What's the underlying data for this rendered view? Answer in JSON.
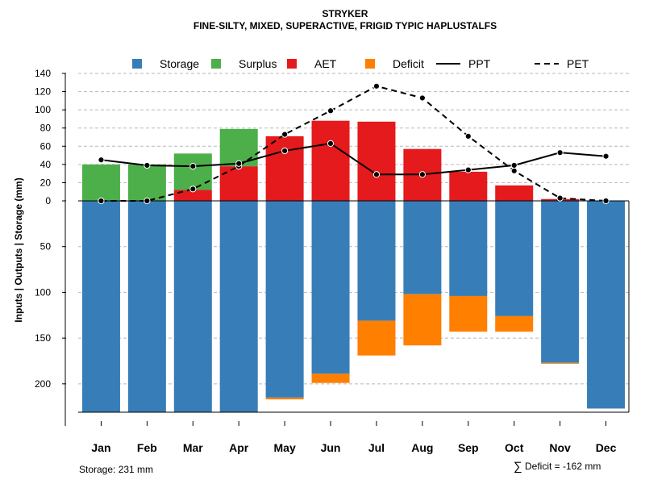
{
  "chart_data": {
    "type": "bar",
    "title": "STRYKER",
    "subtitle": "FINE-SILTY, MIXED, SUPERACTIVE, FRIGID TYPIC HAPLUSTALFS",
    "ylabel": "Inputs | Outputs | Storage     (mm)",
    "categories": [
      "Jan",
      "Feb",
      "Mar",
      "Apr",
      "May",
      "Jun",
      "Jul",
      "Aug",
      "Sep",
      "Oct",
      "Nov",
      "Dec"
    ],
    "upper_ticks": [
      0,
      20,
      40,
      60,
      80,
      100,
      120,
      140
    ],
    "lower_ticks": [
      0,
      50,
      100,
      150,
      200
    ],
    "upper_ylim": [
      0,
      140
    ],
    "lower_ylim": [
      0,
      231
    ],
    "series": [
      {
        "name": "Storage",
        "color": "#377EB8",
        "values": [
          231,
          231,
          231,
          231,
          215,
          189,
          131,
          102,
          104,
          126,
          177,
          227
        ]
      },
      {
        "name": "Surplus",
        "color": "#4DAF4A",
        "values": [
          40,
          40,
          40,
          41,
          0,
          0,
          0,
          0,
          0,
          0,
          0,
          0
        ]
      },
      {
        "name": "AET",
        "color": "#E41A1C",
        "values": [
          0,
          0,
          12,
          38,
          71,
          88,
          87,
          57,
          32,
          17,
          2,
          0
        ]
      },
      {
        "name": "Deficit",
        "color": "#FF7F00",
        "values": [
          0,
          0,
          0,
          0,
          2,
          10,
          38,
          56,
          39,
          17,
          1,
          0
        ]
      },
      {
        "name": "PPT",
        "color": "#000000",
        "style": "solid",
        "values": [
          45,
          39,
          38,
          41,
          55,
          63,
          29,
          29,
          34,
          39,
          53,
          49
        ]
      },
      {
        "name": "PET",
        "color": "#000000",
        "style": "dashed",
        "values": [
          0,
          0,
          13,
          38,
          73,
          99,
          126,
          113,
          71,
          33,
          3,
          0
        ]
      }
    ],
    "storage_total_label": "Storage: 231 mm",
    "deficit_symbol": "∑",
    "deficit_total_label": "Deficit = -162 mm",
    "legend_position": "top",
    "grid": true
  }
}
